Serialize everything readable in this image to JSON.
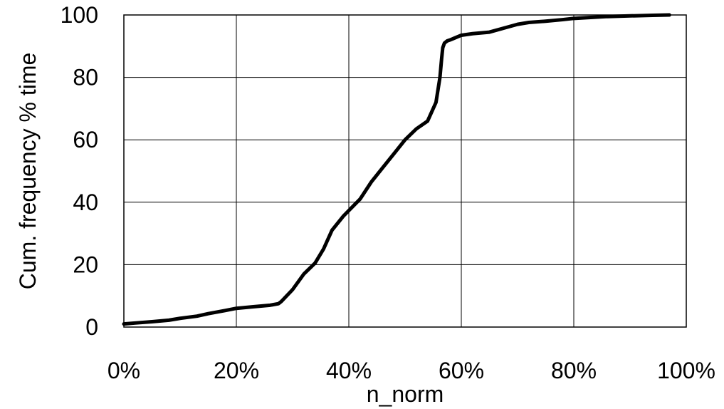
{
  "chart_data": {
    "type": "line",
    "title": "",
    "xlabel": "n_norm",
    "ylabel": "Cum. frequency  % time",
    "xlim": [
      0,
      1
    ],
    "ylim": [
      0,
      100
    ],
    "grid": true,
    "legend": "none",
    "x_ticks": [
      {
        "value": 0.0,
        "label": "0%"
      },
      {
        "value": 0.2,
        "label": "20%"
      },
      {
        "value": 0.4,
        "label": "40%"
      },
      {
        "value": 0.6,
        "label": "60%"
      },
      {
        "value": 0.8,
        "label": "80%"
      },
      {
        "value": 1.0,
        "label": "100%"
      }
    ],
    "y_ticks": [
      {
        "value": 0,
        "label": "0"
      },
      {
        "value": 20,
        "label": "20"
      },
      {
        "value": 40,
        "label": "40"
      },
      {
        "value": 60,
        "label": "60"
      },
      {
        "value": 80,
        "label": "80"
      },
      {
        "value": 100,
        "label": "100"
      }
    ],
    "series": [
      {
        "color": "#000000",
        "x": [
          0.0,
          0.02,
          0.05,
          0.08,
          0.1,
          0.13,
          0.15,
          0.18,
          0.2,
          0.23,
          0.26,
          0.275,
          0.28,
          0.3,
          0.32,
          0.34,
          0.355,
          0.37,
          0.39,
          0.42,
          0.44,
          0.46,
          0.48,
          0.5,
          0.52,
          0.54,
          0.555,
          0.562,
          0.565,
          0.567,
          0.57,
          0.575,
          0.58,
          0.6,
          0.62,
          0.65,
          0.68,
          0.7,
          0.72,
          0.75,
          0.78,
          0.8,
          0.83,
          0.86,
          0.9,
          0.94,
          0.97
        ],
        "y": [
          1.0,
          1.3,
          1.7,
          2.2,
          2.8,
          3.5,
          4.3,
          5.3,
          6.0,
          6.5,
          7.0,
          7.5,
          8.2,
          12.0,
          17.0,
          20.5,
          25.0,
          31.0,
          35.5,
          41.0,
          46.5,
          51.0,
          55.5,
          60.0,
          63.5,
          66.0,
          72.0,
          80.0,
          86.0,
          89.5,
          91.0,
          91.7,
          92.0,
          93.5,
          94.0,
          94.5,
          96.0,
          97.0,
          97.6,
          98.0,
          98.5,
          98.9,
          99.2,
          99.5,
          99.7,
          99.9,
          100.0
        ]
      }
    ]
  }
}
